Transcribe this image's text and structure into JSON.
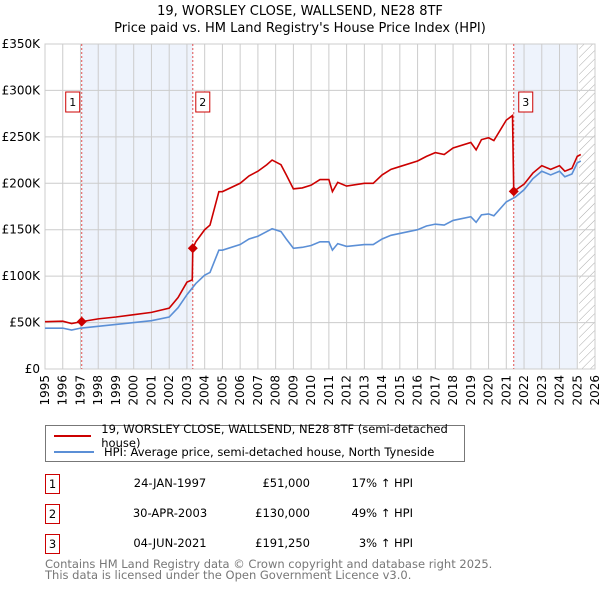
{
  "chart_data": {
    "type": "line",
    "title": "19, WORSLEY CLOSE, WALLSEND, NE28 8TF",
    "subtitle": "Price paid vs. HM Land Registry's House Price Index (HPI)",
    "xlim": [
      1995,
      2026
    ],
    "ylim": [
      0,
      350000
    ],
    "x_ticks": [
      "1995",
      "1996",
      "1997",
      "1998",
      "1999",
      "2000",
      "2001",
      "2002",
      "2003",
      "2004",
      "2005",
      "2006",
      "2007",
      "2008",
      "2009",
      "2010",
      "2011",
      "2012",
      "2013",
      "2014",
      "2015",
      "2016",
      "2017",
      "2018",
      "2019",
      "2020",
      "2021",
      "2022",
      "2023",
      "2024",
      "2025",
      "2026"
    ],
    "y_ticks": [
      {
        "v": 0,
        "label": "£0"
      },
      {
        "v": 50000,
        "label": "£50K"
      },
      {
        "v": 100000,
        "label": "£100K"
      },
      {
        "v": 150000,
        "label": "£150K"
      },
      {
        "v": 200000,
        "label": "£200K"
      },
      {
        "v": 250000,
        "label": "£250K"
      },
      {
        "v": 300000,
        "label": "£300K"
      },
      {
        "v": 350000,
        "label": "£350K"
      }
    ],
    "grid": true,
    "series": [
      {
        "name": "19, WORSLEY CLOSE, WALLSEND, NE28 8TF (semi-detached house)",
        "color": "#cc0000",
        "x": [
          1995,
          1996,
          1996.5,
          1997.07,
          1998,
          1999,
          2000,
          2001,
          2002,
          2002.5,
          2003,
          2003.3,
          2003.33,
          2003.5,
          2004,
          2004.3,
          2004.8,
          2005,
          2006,
          2006.5,
          2007,
          2007.5,
          2007.8,
          2008.3,
          2008.6,
          2009,
          2009.5,
          2010,
          2010.5,
          2011,
          2011.2,
          2011.5,
          2012,
          2013,
          2013.5,
          2014,
          2014.5,
          2015,
          2016,
          2016.5,
          2017,
          2017.5,
          2018,
          2019,
          2019.3,
          2019.6,
          2020,
          2020.3,
          2021,
          2021.35,
          2021.42,
          2022,
          2022.5,
          2023,
          2023.5,
          2024,
          2024.3,
          2024.7,
          2025,
          2025.2
        ],
        "y": [
          51000,
          51500,
          49000,
          51000,
          54000,
          56000,
          58500,
          61000,
          65500,
          77000,
          93500,
          96000,
          130000,
          137000,
          150000,
          155000,
          191000,
          191000,
          200000,
          208000,
          213000,
          220000,
          225000,
          220000,
          209000,
          194000,
          195000,
          198000,
          204000,
          204000,
          191000,
          201000,
          197000,
          200000,
          200000,
          209000,
          215000,
          218000,
          224000,
          229000,
          233000,
          231000,
          238000,
          244000,
          236000,
          247000,
          249000,
          246000,
          268000,
          273000,
          191250,
          199000,
          211000,
          219000,
          215000,
          219000,
          213000,
          216000,
          229000,
          231000
        ]
      },
      {
        "name": "HPI: Average price, semi-detached house, North Tyneside",
        "color": "#5b8fd6",
        "x": [
          1995,
          1996,
          1996.5,
          1997,
          1998,
          1999,
          2000,
          2001,
          2002,
          2002.5,
          2003,
          2003.5,
          2004,
          2004.3,
          2004.8,
          2005,
          2006,
          2006.5,
          2007,
          2007.5,
          2007.8,
          2008.3,
          2008.6,
          2009,
          2009.5,
          2010,
          2010.5,
          2011,
          2011.2,
          2011.5,
          2012,
          2013,
          2013.5,
          2014,
          2014.5,
          2015,
          2016,
          2016.5,
          2017,
          2017.5,
          2018,
          2019,
          2019.3,
          2019.6,
          2020,
          2020.3,
          2021,
          2021.5,
          2022,
          2022.5,
          2023,
          2023.5,
          2024,
          2024.3,
          2024.7,
          2025,
          2025.2
        ],
        "y": [
          44000,
          44000,
          42000,
          44000,
          46000,
          48000,
          50000,
          52000,
          56000,
          66000,
          80000,
          92000,
          101000,
          104000,
          128000,
          128000,
          134000,
          140000,
          143000,
          148000,
          151000,
          148000,
          140000,
          130000,
          131000,
          133000,
          137000,
          137000,
          128000,
          135000,
          132000,
          134000,
          134000,
          140000,
          144000,
          146000,
          150000,
          154000,
          156000,
          155000,
          160000,
          164000,
          158000,
          166000,
          167000,
          165000,
          180000,
          185000,
          193000,
          205000,
          213000,
          209000,
          213000,
          207000,
          210000,
          222000,
          224000
        ]
      }
    ],
    "sales": [
      {
        "n": "1",
        "x": 1997.07,
        "y": 51000,
        "date": "24-JAN-1997",
        "price": "£51,000",
        "hpi": "17% ↑ HPI"
      },
      {
        "n": "2",
        "x": 2003.33,
        "y": 130000,
        "date": "30-APR-2003",
        "price": "£130,000",
        "hpi": "49% ↑ HPI"
      },
      {
        "n": "3",
        "x": 2021.42,
        "y": 191250,
        "date": "04-JUN-2021",
        "price": "£191,250",
        "hpi": "3% ↑ HPI"
      }
    ],
    "shaded_ranges": [
      [
        1997.07,
        2003.33
      ],
      [
        2021.42,
        2025.0
      ]
    ],
    "forecast_start": 2025.1
  },
  "footer": [
    "Contains HM Land Registry data © Crown copyright and database right 2025.",
    "This data is licensed under the Open Government Licence v3.0."
  ]
}
